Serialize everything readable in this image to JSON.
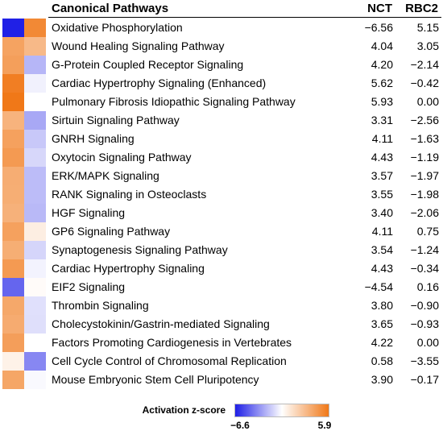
{
  "chart_data": {
    "type": "heatmap",
    "title": "",
    "header": {
      "pathway": "Canonical Pathways",
      "col1": "NCT",
      "col2": "RBC2"
    },
    "columns": [
      "NCT",
      "RBC2"
    ],
    "rows": [
      {
        "pathway": "Oxidative Phosphorylation",
        "nct": "−6.56",
        "rbc2": "5.15"
      },
      {
        "pathway": "Wound Healing Signaling Pathway",
        "nct": "4.04",
        "rbc2": "3.05"
      },
      {
        "pathway": "G-Protein Coupled Receptor Signaling",
        "nct": "4.20",
        "rbc2": "−2.14"
      },
      {
        "pathway": "Cardiac Hypertrophy Signaling (Enhanced)",
        "nct": "5.62",
        "rbc2": "−0.42"
      },
      {
        "pathway": "Pulmonary Fibrosis Idiopathic Signaling Pathway",
        "nct": "5.93",
        "rbc2": "0.00"
      },
      {
        "pathway": "Sirtuin Signaling Pathway",
        "nct": "3.31",
        "rbc2": "−2.56"
      },
      {
        "pathway": "GNRH Signaling",
        "nct": "4.11",
        "rbc2": "−1.63"
      },
      {
        "pathway": "Oxytocin Signaling Pathway",
        "nct": "4.43",
        "rbc2": "−1.19"
      },
      {
        "pathway": "ERK/MAPK Signaling",
        "nct": "3.57",
        "rbc2": "−1.97"
      },
      {
        "pathway": "RANK Signaling in Osteoclasts",
        "nct": "3.55",
        "rbc2": "−1.98"
      },
      {
        "pathway": "HGF Signaling",
        "nct": "3.40",
        "rbc2": "−2.06"
      },
      {
        "pathway": "GP6 Signaling Pathway",
        "nct": "4.11",
        "rbc2": "0.75"
      },
      {
        "pathway": "Synaptogenesis Signaling Pathway",
        "nct": "3.54",
        "rbc2": "−1.24"
      },
      {
        "pathway": "Cardiac Hypertrophy Signaling",
        "nct": "4.43",
        "rbc2": "−0.34"
      },
      {
        "pathway": "EIF2 Signaling",
        "nct": "−4.54",
        "rbc2": "0.16"
      },
      {
        "pathway": "Thrombin Signaling",
        "nct": "3.80",
        "rbc2": "−0.90"
      },
      {
        "pathway": "Cholecystokinin/Gastrin-mediated Signaling",
        "nct": "3.65",
        "rbc2": "−0.93"
      },
      {
        "pathway": "Factors Promoting Cardiogenesis in Vertebrates",
        "nct": "4.22",
        "rbc2": "0.00"
      },
      {
        "pathway": "Cell Cycle Control of Chromosomal Replication",
        "nct": "0.58",
        "rbc2": "−3.55"
      },
      {
        "pathway": "Mouse Embryonic Stem Cell Pluripotency",
        "nct": "3.90",
        "rbc2": "−0.17"
      }
    ],
    "legend": {
      "title": "Activation z-score",
      "min_label": "−6.6",
      "max_label": "5.9",
      "min": -6.6,
      "max": 5.9,
      "colors": {
        "negative": "#1f1fe6",
        "neutral": "#ffffff",
        "positive": "#f07818"
      }
    }
  }
}
